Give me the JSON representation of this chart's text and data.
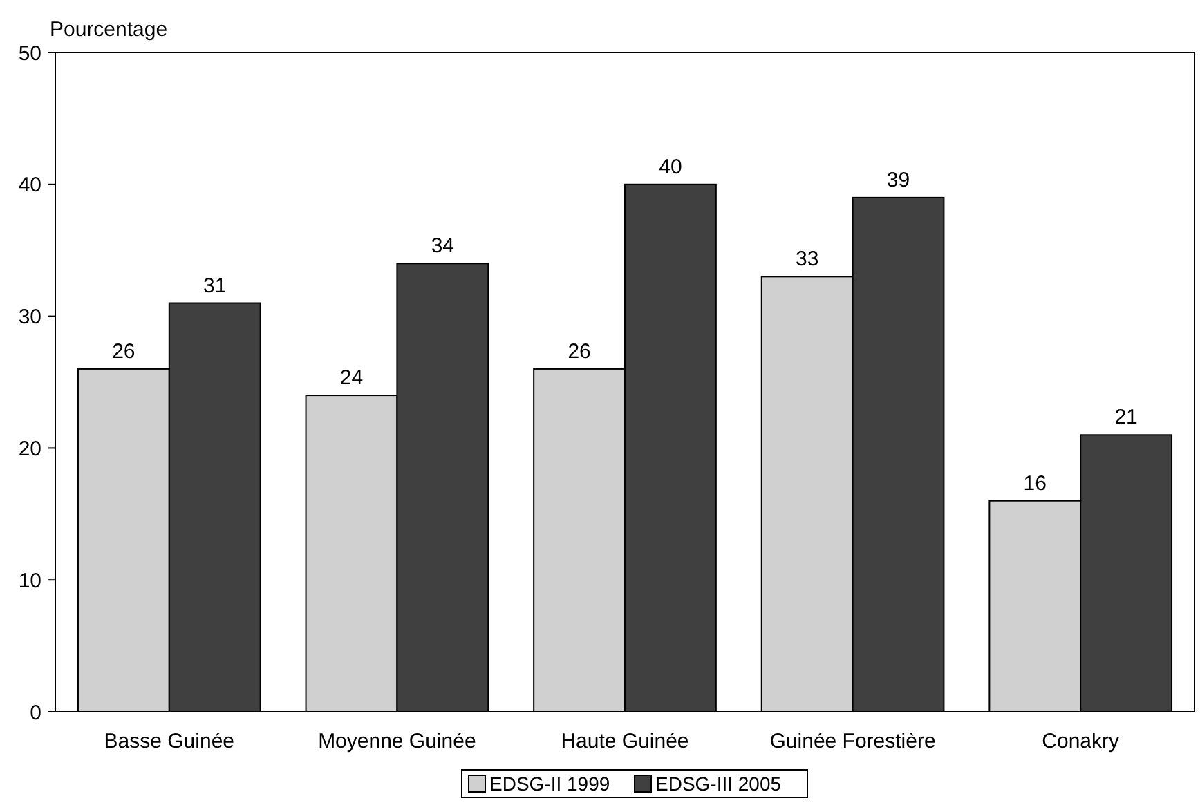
{
  "chart_data": {
    "type": "bar",
    "ylabel": "Pourcentage",
    "categories": [
      "Basse Guinée",
      "Moyenne Guinée",
      "Haute Guinée",
      "Guinée Forestière",
      "Conakry"
    ],
    "series": [
      {
        "name": "EDSG-II 1999",
        "color": "#d0d0d0",
        "values": [
          26,
          24,
          26,
          33,
          16
        ]
      },
      {
        "name": "EDSG-III 2005",
        "color": "#404040",
        "values": [
          31,
          34,
          40,
          39,
          21
        ]
      }
    ],
    "ylim": [
      0,
      50
    ],
    "yticks": [
      0,
      10,
      20,
      30,
      40,
      50
    ],
    "data_labels": true,
    "legend": "bottom",
    "grid": false
  }
}
